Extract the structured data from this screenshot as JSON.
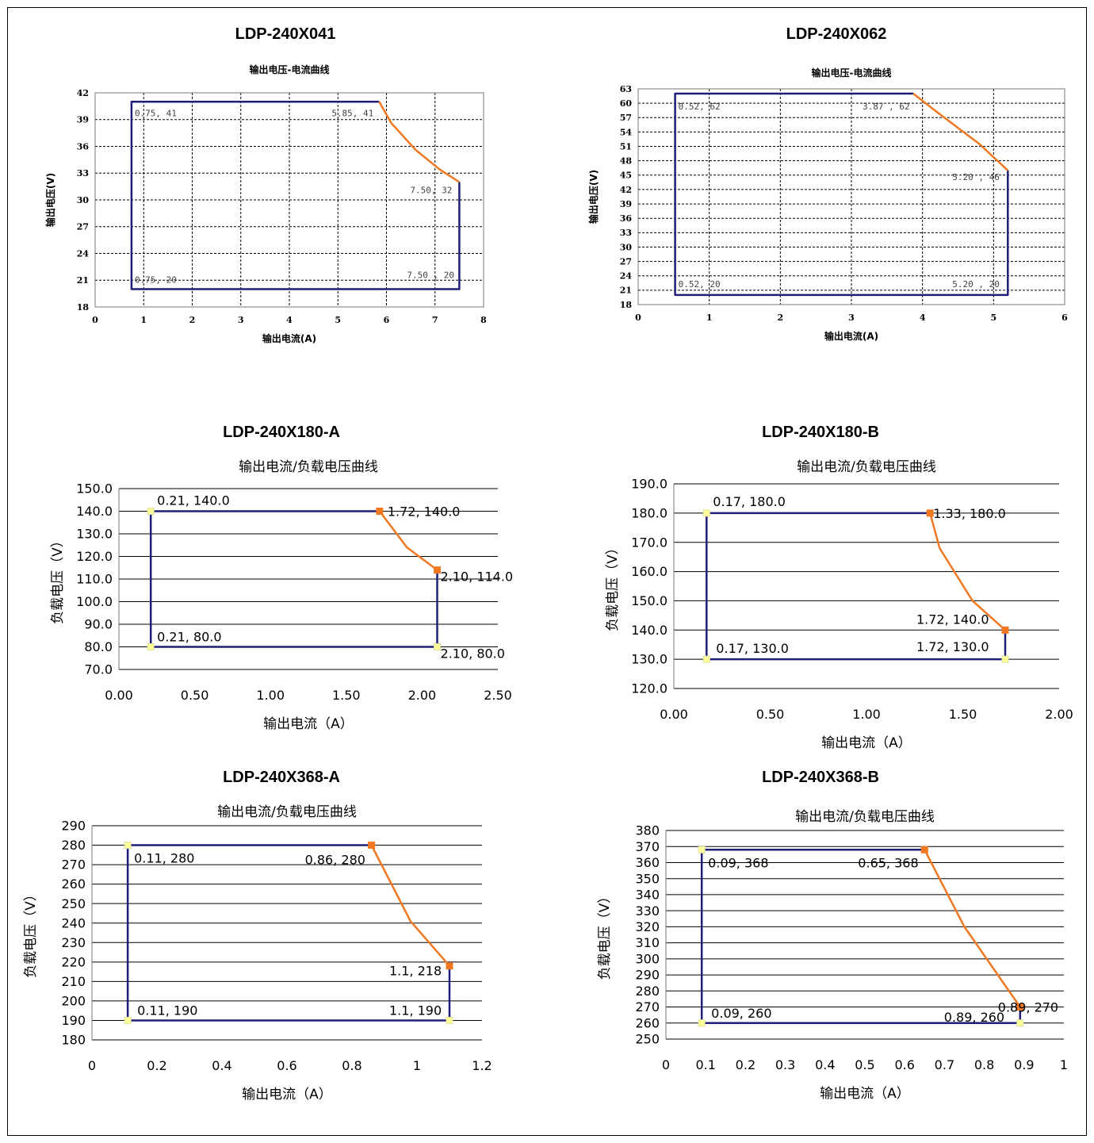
{
  "charts": [
    {
      "panel_title": "LDP-240X041",
      "chart_data": {
        "type": "line",
        "title": "输出电压-电流曲线",
        "xlabel": "输出电流(A)",
        "ylabel": "输出电压(V)",
        "xlim": [
          0,
          8
        ],
        "ylim": [
          18,
          42
        ],
        "xticks": [
          "0",
          "1",
          "2",
          "3",
          "4",
          "5",
          "6",
          "7",
          "8"
        ],
        "yticks": [
          "18",
          "21",
          "24",
          "27",
          "30",
          "33",
          "36",
          "39",
          "42"
        ],
        "grid": "dashed",
        "series": [
          {
            "color": "#1f1f7a",
            "points": [
              [
                5.85,
                41
              ],
              [
                0.75,
                41
              ],
              [
                0.75,
                20
              ],
              [
                7.5,
                20
              ],
              [
                7.5,
                32
              ]
            ]
          },
          {
            "color": "#f07820",
            "points": [
              [
                5.85,
                41
              ],
              [
                6.1,
                38.6
              ],
              [
                6.6,
                35.6
              ],
              [
                7.1,
                33.4
              ],
              [
                7.5,
                32
              ]
            ]
          }
        ],
        "labels": [
          {
            "text": "0.75, 41",
            "x": 0.75,
            "y": 41
          },
          {
            "text": "5.85, 41",
            "x": 5.85,
            "y": 41
          },
          {
            "text": "7.50, 32",
            "x": 7.5,
            "y": 32
          },
          {
            "text": "0.75, 20",
            "x": 0.75,
            "y": 20
          },
          {
            "text": "7.50 , 20",
            "x": 7.5,
            "y": 20
          }
        ]
      }
    },
    {
      "panel_title": "LDP-240X062",
      "chart_data": {
        "type": "line",
        "title": "输出电压-电流曲线",
        "xlabel": "输出电流(A)",
        "ylabel": "输出电压(V)",
        "xlim": [
          0,
          6
        ],
        "ylim": [
          18,
          63
        ],
        "xticks": [
          "0",
          "1",
          "2",
          "3",
          "4",
          "5",
          "6"
        ],
        "yticks": [
          "18",
          "21",
          "24",
          "27",
          "30",
          "33",
          "36",
          "39",
          "42",
          "45",
          "48",
          "51",
          "54",
          "57",
          "60",
          "63"
        ],
        "grid": "dashed",
        "series": [
          {
            "color": "#1f1f7a",
            "points": [
              [
                3.87,
                62
              ],
              [
                0.52,
                62
              ],
              [
                0.52,
                20
              ],
              [
                5.2,
                20
              ],
              [
                5.2,
                46
              ]
            ]
          },
          {
            "color": "#f07820",
            "points": [
              [
                3.87,
                62
              ],
              [
                4.2,
                58.2
              ],
              [
                4.8,
                51.5
              ],
              [
                5.2,
                46
              ]
            ]
          }
        ],
        "labels": [
          {
            "text": "0.52, 62",
            "x": 0.52,
            "y": 62
          },
          {
            "text": "3.87 , 62",
            "x": 3.87,
            "y": 62
          },
          {
            "text": "5.20 , 46",
            "x": 5.2,
            "y": 46
          },
          {
            "text": "0.52, 20",
            "x": 0.52,
            "y": 20
          },
          {
            "text": "5.20 , 20",
            "x": 5.2,
            "y": 20
          }
        ]
      }
    },
    {
      "panel_title": "LDP-240X180-A",
      "chart_data": {
        "type": "line",
        "title": "输出电流/负载电压曲线",
        "xlabel": "输出电流（A）",
        "ylabel": "负载电压（V）",
        "xlim": [
          0,
          2.5
        ],
        "ylim": [
          70,
          150
        ],
        "xticks": [
          "0.00",
          "0.50",
          "1.00",
          "1.50",
          "2.00",
          "2.50"
        ],
        "yticks": [
          "70.0",
          "80.0",
          "90.0",
          "100.0",
          "110.0",
          "120.0",
          "130.0",
          "140.0",
          "150.0"
        ],
        "grid": "solid-horizontal",
        "series": [
          {
            "color": "#1f1f7a",
            "points": [
              [
                1.72,
                140
              ],
              [
                0.21,
                140
              ],
              [
                0.21,
                80
              ],
              [
                2.1,
                80
              ],
              [
                2.1,
                114
              ]
            ]
          },
          {
            "color": "#f07820",
            "points": [
              [
                1.72,
                140
              ],
              [
                1.9,
                124
              ],
              [
                2.1,
                114
              ]
            ]
          }
        ],
        "labels": [
          {
            "text": "0.21, 140.0",
            "x": 0.21,
            "y": 140
          },
          {
            "text": "1.72, 140.0",
            "x": 1.72,
            "y": 140
          },
          {
            "text": "2.10, 114.0",
            "x": 2.1,
            "y": 114
          },
          {
            "text": "0.21, 80.0",
            "x": 0.21,
            "y": 80
          },
          {
            "text": "2.10, 80.0",
            "x": 2.1,
            "y": 80
          }
        ]
      }
    },
    {
      "panel_title": "LDP-240X180-B",
      "chart_data": {
        "type": "line",
        "title": "输出电流/负载电压曲线",
        "xlabel": "输出电流（A）",
        "ylabel": "负载电压（V）",
        "xlim": [
          0,
          2.0
        ],
        "ylim": [
          120,
          190
        ],
        "xticks": [
          "0.00",
          "0.50",
          "1.00",
          "1.50",
          "2.00"
        ],
        "yticks": [
          "120.0",
          "130.0",
          "140.0",
          "150.0",
          "160.0",
          "170.0",
          "180.0",
          "190.0"
        ],
        "grid": "solid-horizontal",
        "series": [
          {
            "color": "#1f1f7a",
            "points": [
              [
                1.33,
                180
              ],
              [
                0.17,
                180
              ],
              [
                0.17,
                130
              ],
              [
                1.72,
                130
              ],
              [
                1.72,
                140
              ]
            ]
          },
          {
            "color": "#f07820",
            "points": [
              [
                1.33,
                180
              ],
              [
                1.38,
                168
              ],
              [
                1.55,
                150
              ],
              [
                1.72,
                140
              ]
            ]
          }
        ],
        "labels": [
          {
            "text": "0.17, 180.0",
            "x": 0.17,
            "y": 180
          },
          {
            "text": "1.33, 180.0",
            "x": 1.33,
            "y": 180
          },
          {
            "text": "1.72, 140.0",
            "x": 1.72,
            "y": 140
          },
          {
            "text": "0.17, 130.0",
            "x": 0.17,
            "y": 130
          },
          {
            "text": "1.72, 130.0",
            "x": 1.72,
            "y": 130
          }
        ]
      }
    },
    {
      "panel_title": "LDP-240X368-A",
      "chart_data": {
        "type": "line",
        "title": "输出电流/负载电压曲线",
        "xlabel": "输出电流（A）",
        "ylabel": "负载电压（V）",
        "xlim": [
          0,
          1.2
        ],
        "ylim": [
          180,
          290
        ],
        "xticks": [
          "0",
          "0.2",
          "0.4",
          "0.6",
          "0.8",
          "1",
          "1.2"
        ],
        "yticks": [
          "180",
          "190",
          "200",
          "210",
          "220",
          "230",
          "240",
          "250",
          "260",
          "270",
          "280",
          "290"
        ],
        "grid": "solid-horizontal",
        "series": [
          {
            "color": "#1f1f7a",
            "points": [
              [
                0.86,
                280
              ],
              [
                0.11,
                280
              ],
              [
                0.11,
                190
              ],
              [
                1.1,
                190
              ],
              [
                1.1,
                218
              ]
            ]
          },
          {
            "color": "#f07820",
            "points": [
              [
                0.86,
                280
              ],
              [
                0.98,
                241
              ],
              [
                1.1,
                218
              ]
            ]
          }
        ],
        "labels": [
          {
            "text": "0.11, 280",
            "x": 0.11,
            "y": 280
          },
          {
            "text": "0.86, 280",
            "x": 0.86,
            "y": 280
          },
          {
            "text": "1.1, 218",
            "x": 1.1,
            "y": 218
          },
          {
            "text": "0.11, 190",
            "x": 0.11,
            "y": 190
          },
          {
            "text": "1.1, 190",
            "x": 1.1,
            "y": 190
          }
        ]
      }
    },
    {
      "panel_title": "LDP-240X368-B",
      "chart_data": {
        "type": "line",
        "title": "输出电流/负载电压曲线",
        "xlabel": "输出电流（A）",
        "ylabel": "负载电压（V）",
        "xlim": [
          0,
          1
        ],
        "ylim": [
          250,
          380
        ],
        "xticks": [
          "0",
          "0.1",
          "0.2",
          "0.3",
          "0.4",
          "0.5",
          "0.6",
          "0.7",
          "0.8",
          "0.9",
          "1"
        ],
        "yticks": [
          "250",
          "260",
          "270",
          "280",
          "290",
          "300",
          "310",
          "320",
          "330",
          "340",
          "350",
          "360",
          "370",
          "380"
        ],
        "grid": "solid-horizontal",
        "series": [
          {
            "color": "#1f1f7a",
            "points": [
              [
                0.65,
                368
              ],
              [
                0.09,
                368
              ],
              [
                0.09,
                260
              ],
              [
                0.89,
                260
              ],
              [
                0.89,
                270
              ]
            ]
          },
          {
            "color": "#f07820",
            "points": [
              [
                0.65,
                368
              ],
              [
                0.75,
                320
              ],
              [
                0.89,
                270
              ]
            ]
          }
        ],
        "labels": [
          {
            "text": "0.09, 368",
            "x": 0.09,
            "y": 368
          },
          {
            "text": "0.65, 368",
            "x": 0.65,
            "y": 368
          },
          {
            "text": "0.89, 270",
            "x": 0.89,
            "y": 270
          },
          {
            "text": "0.09, 260",
            "x": 0.09,
            "y": 260
          },
          {
            "text": "0.89, 260",
            "x": 0.89,
            "y": 260
          }
        ]
      }
    }
  ]
}
